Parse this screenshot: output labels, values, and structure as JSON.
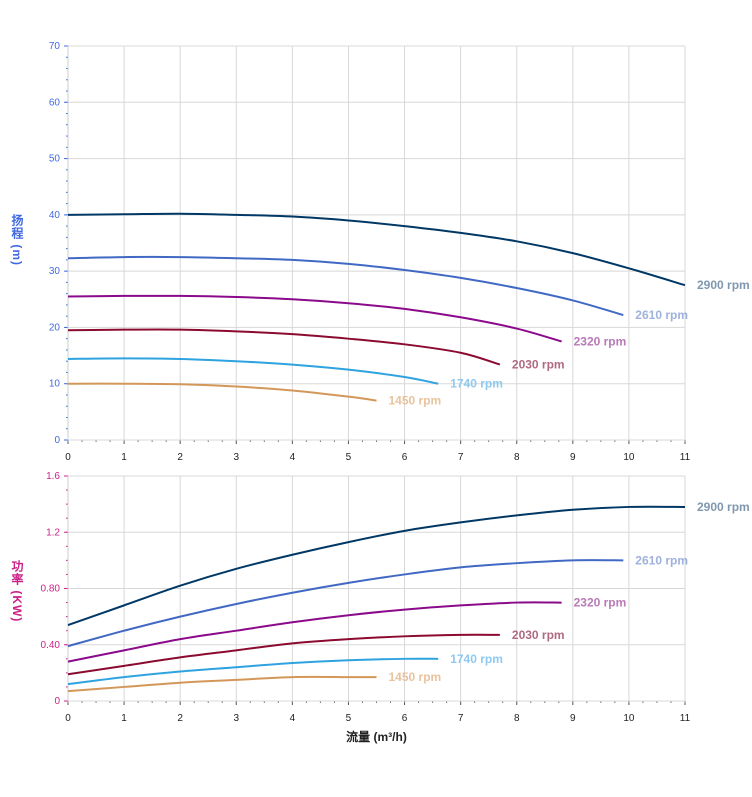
{
  "chart_data": [
    {
      "type": "line",
      "title": "",
      "ylabel": "扬程 (m)",
      "xlabel": "",
      "xlim": [
        0,
        11
      ],
      "ylim": [
        0,
        70
      ],
      "xticks": [
        "0",
        "1",
        "2",
        "3",
        "4",
        "5",
        "6",
        "7",
        "8",
        "9",
        "10",
        "11"
      ],
      "yticks": [
        "0",
        "10",
        "20",
        "30",
        "40",
        "50",
        "60",
        "70"
      ],
      "series": [
        {
          "name": "2900 rpm",
          "color": "#003865",
          "label_color": "#7f98b0",
          "x": [
            0,
            1,
            2,
            3,
            4,
            5,
            6,
            7,
            8,
            9,
            10,
            11
          ],
          "y": [
            40,
            40.1,
            40.2,
            40,
            39.7,
            39,
            38,
            36.8,
            35.3,
            33.2,
            30.5,
            27.5
          ]
        },
        {
          "name": "2610 rpm",
          "color": "#4169c4",
          "label_color": "#9fb1dd",
          "x": [
            0,
            1,
            2,
            3,
            4,
            5,
            6,
            7,
            8,
            9,
            9.9
          ],
          "y": [
            32.3,
            32.5,
            32.5,
            32.3,
            32,
            31.3,
            30.2,
            28.8,
            27,
            24.8,
            22.2
          ]
        },
        {
          "name": "2320 rpm",
          "color": "#8b0a8b",
          "label_color": "#b77ab7",
          "x": [
            0,
            1,
            2,
            3,
            4,
            5,
            6,
            7,
            8,
            8.8
          ],
          "y": [
            25.5,
            25.6,
            25.6,
            25.4,
            25,
            24.3,
            23.3,
            21.8,
            19.8,
            17.5
          ]
        },
        {
          "name": "2030 rpm",
          "color": "#8b0a30",
          "label_color": "#b06a80",
          "x": [
            0,
            1,
            2,
            3,
            4,
            5,
            6,
            7,
            7.7
          ],
          "y": [
            19.5,
            19.6,
            19.6,
            19.3,
            18.8,
            18,
            17,
            15.5,
            13.4
          ]
        },
        {
          "name": "1740 rpm",
          "color": "#2ea3e0",
          "label_color": "#8ec9ef",
          "x": [
            0,
            1,
            2,
            3,
            4,
            5,
            6,
            6.6
          ],
          "y": [
            14.4,
            14.5,
            14.4,
            14,
            13.4,
            12.5,
            11.2,
            10
          ]
        },
        {
          "name": "1450 rpm",
          "color": "#d4975a",
          "label_color": "#e8c39e",
          "x": [
            0,
            1,
            2,
            3,
            4,
            5,
            5.5
          ],
          "y": [
            10,
            10,
            9.9,
            9.5,
            8.8,
            7.7,
            7
          ]
        }
      ]
    },
    {
      "type": "line",
      "title": "",
      "ylabel": "功率 (KW)",
      "xlabel": "流量 (m³/h)",
      "xlim": [
        0,
        11
      ],
      "ylim": [
        0,
        1.6
      ],
      "xticks": [
        "0",
        "1",
        "2",
        "3",
        "4",
        "5",
        "6",
        "7",
        "8",
        "9",
        "10",
        "11"
      ],
      "yticks": [
        "0",
        "0.40",
        "0.80",
        "1.2",
        "1.6"
      ],
      "series": [
        {
          "name": "2900 rpm",
          "color": "#003865",
          "label_color": "#7f98b0",
          "x": [
            0,
            1,
            2,
            3,
            4,
            5,
            6,
            7,
            8,
            9,
            10,
            11
          ],
          "y": [
            0.54,
            0.68,
            0.82,
            0.94,
            1.04,
            1.13,
            1.21,
            1.27,
            1.32,
            1.36,
            1.38,
            1.38
          ]
        },
        {
          "name": "2610 rpm",
          "color": "#4169c4",
          "label_color": "#9fb1dd",
          "x": [
            0,
            1,
            2,
            3,
            4,
            5,
            6,
            7,
            8,
            9,
            9.9
          ],
          "y": [
            0.39,
            0.5,
            0.6,
            0.69,
            0.77,
            0.84,
            0.9,
            0.95,
            0.98,
            1.0,
            1.0
          ]
        },
        {
          "name": "2320 rpm",
          "color": "#8b0a8b",
          "label_color": "#b77ab7",
          "x": [
            0,
            1,
            2,
            3,
            4,
            5,
            6,
            7,
            8,
            8.8
          ],
          "y": [
            0.28,
            0.36,
            0.44,
            0.5,
            0.56,
            0.61,
            0.65,
            0.68,
            0.7,
            0.7
          ]
        },
        {
          "name": "2030 rpm",
          "color": "#8b0a30",
          "label_color": "#b06a80",
          "x": [
            0,
            1,
            2,
            3,
            4,
            5,
            6,
            7,
            7.7
          ],
          "y": [
            0.19,
            0.25,
            0.31,
            0.36,
            0.41,
            0.44,
            0.46,
            0.47,
            0.47
          ]
        },
        {
          "name": "1740 rpm",
          "color": "#2ea3e0",
          "label_color": "#8ec9ef",
          "x": [
            0,
            1,
            2,
            3,
            4,
            5,
            6,
            6.6
          ],
          "y": [
            0.12,
            0.17,
            0.21,
            0.24,
            0.27,
            0.29,
            0.3,
            0.3
          ]
        },
        {
          "name": "1450 rpm",
          "color": "#d4975a",
          "label_color": "#e8c39e",
          "x": [
            0,
            1,
            2,
            3,
            4,
            5,
            5.5
          ],
          "y": [
            0.07,
            0.1,
            0.13,
            0.15,
            0.17,
            0.17,
            0.17
          ]
        }
      ]
    }
  ],
  "axis_colors": {
    "head": "#4169e1",
    "power": "#cc2288",
    "x": "#222222"
  }
}
